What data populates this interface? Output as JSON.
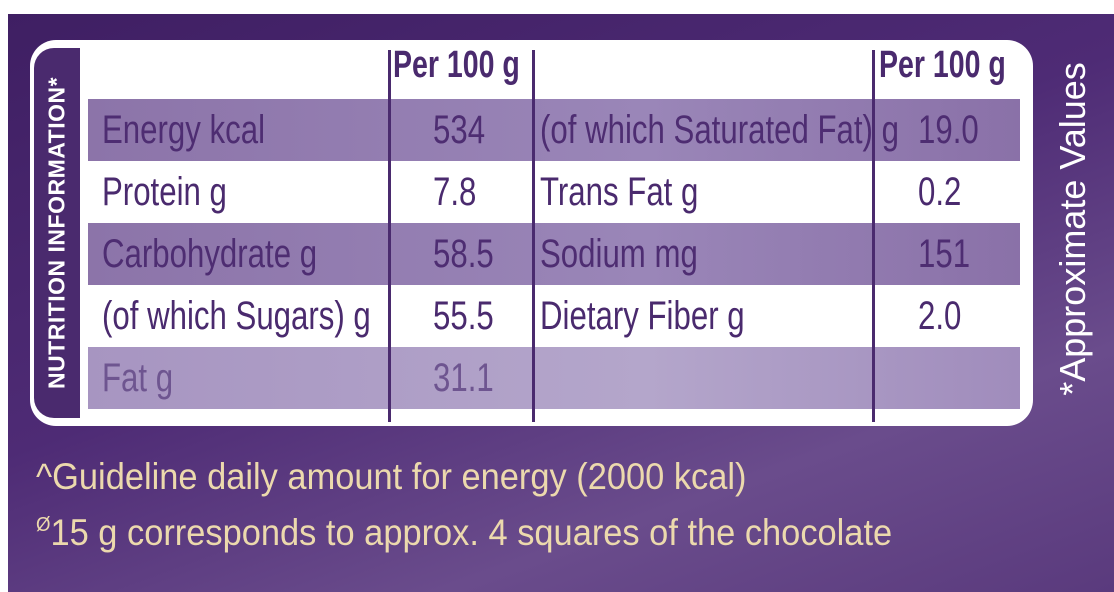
{
  "side_title": "NUTRITION INFORMATION*",
  "approx_note": "*Approximate Values",
  "table": {
    "header_left": "Per 100 g",
    "header_right": "Per 100 g",
    "rows": [
      {
        "left_label": "Energy kcal",
        "left_value": "534",
        "right_label": "(of which Saturated Fat) g",
        "right_value": "19.0"
      },
      {
        "left_label": "Protein g",
        "left_value": "7.8",
        "right_label": "Trans Fat g",
        "right_value": "0.2"
      },
      {
        "left_label": "Carbohydrate g",
        "left_value": "58.5",
        "right_label": "Sodium mg",
        "right_value": "151"
      },
      {
        "left_label": "(of which Sugars) g",
        "left_value": "55.5",
        "right_label": "Dietary Fiber g",
        "right_value": "2.0"
      },
      {
        "left_label": "Fat g",
        "left_value": "31.1",
        "right_label": "",
        "right_value": ""
      }
    ]
  },
  "footnotes": {
    "line1_mark": "^",
    "line1": "Guideline daily amount for energy (2000 kcal)",
    "line2_mark": "Ø",
    "line2": "15 g corresponds to approx. 4 squares of the chocolate"
  },
  "colors": {
    "brand_purple": "#4a2a6e",
    "row_shade": "#8c74a9",
    "footnote_text": "#ecd9ad"
  }
}
